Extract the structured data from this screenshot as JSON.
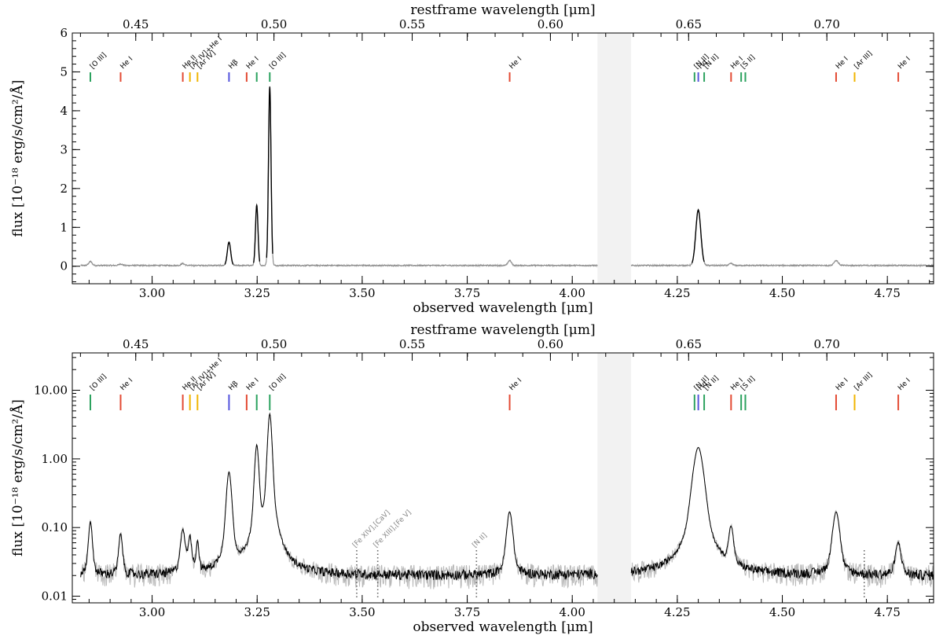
{
  "chart_data": [
    {
      "type": "line",
      "yscale": "linear",
      "xlabel": "observed wavelength [μm]",
      "x2label": "restframe wavelength [μm]",
      "ylabel": "flux [10⁻¹⁸ erg/s/cm²/Å]",
      "xlim": [
        2.81,
        4.86
      ],
      "ylim": [
        -0.45,
        6.0
      ],
      "x_ticks": [
        "3.00",
        "3.25",
        "3.50",
        "3.75",
        "4.00",
        "4.25",
        "4.50",
        "4.75"
      ],
      "x2_ticks": [
        "0.45",
        "0.50",
        "0.55",
        "0.60",
        "0.65",
        "0.70"
      ],
      "y_ticks": [
        "0",
        "1",
        "2",
        "3",
        "4",
        "5",
        "6"
      ],
      "masked_region": [
        4.06,
        4.14
      ],
      "emission_lines": [
        {
          "x": 2.853,
          "label": "[O III]",
          "color": "#2ca25f"
        },
        {
          "x": 2.925,
          "label": "He I",
          "color": "#e34a33"
        },
        {
          "x": 3.073,
          "label": "He II",
          "color": "#e34a33"
        },
        {
          "x": 3.09,
          "label": "[Ar IV]+He I",
          "color": "#f0b400"
        },
        {
          "x": 3.108,
          "label": "[Ar IV]",
          "color": "#f0b400"
        },
        {
          "x": 3.183,
          "label": "Hβ",
          "color": "#5555dd"
        },
        {
          "x": 3.225,
          "label": "He I",
          "color": "#e34a33"
        },
        {
          "x": 3.249,
          "label": "",
          "color": "#2ca25f"
        },
        {
          "x": 3.28,
          "label": "[O III]",
          "color": "#2ca25f"
        },
        {
          "x": 3.851,
          "label": "He I",
          "color": "#e34a33"
        },
        {
          "x": 4.291,
          "label": "[N II]",
          "color": "#2ca25f"
        },
        {
          "x": 4.3,
          "label": "Hα",
          "color": "#5555dd"
        },
        {
          "x": 4.314,
          "label": "[N II]",
          "color": "#2ca25f"
        },
        {
          "x": 4.378,
          "label": "He I",
          "color": "#e34a33"
        },
        {
          "x": 4.402,
          "label": "[S II]",
          "color": "#2ca25f"
        },
        {
          "x": 4.412,
          "label": "",
          "color": "#2ca25f"
        },
        {
          "x": 4.628,
          "label": "He I",
          "color": "#e34a33"
        },
        {
          "x": 4.672,
          "label": "[Ar III]",
          "color": "#f0b400"
        },
        {
          "x": 4.776,
          "label": "He I",
          "color": "#e34a33"
        }
      ],
      "peaks": [
        {
          "x": 2.853,
          "height": 0.1,
          "width": 0.004
        },
        {
          "x": 2.925,
          "height": 0.04,
          "width": 0.004
        },
        {
          "x": 3.073,
          "height": 0.05,
          "width": 0.004
        },
        {
          "x": 3.183,
          "height": 0.6,
          "width": 0.004
        },
        {
          "x": 3.249,
          "height": 1.55,
          "width": 0.003
        },
        {
          "x": 3.28,
          "height": 4.6,
          "width": 0.003
        },
        {
          "x": 3.851,
          "height": 0.13,
          "width": 0.004
        },
        {
          "x": 4.3,
          "height": 1.43,
          "width": 0.006
        },
        {
          "x": 4.378,
          "height": 0.05,
          "width": 0.004
        },
        {
          "x": 4.628,
          "height": 0.13,
          "width": 0.005
        }
      ]
    },
    {
      "type": "line",
      "yscale": "log",
      "xlabel": "observed wavelength [μm]",
      "x2label": "restframe wavelength [μm]",
      "ylabel": "flux [10⁻¹⁸ erg/s/cm²/Å]",
      "xlim": [
        2.81,
        4.86
      ],
      "ylim": [
        0.008,
        35
      ],
      "x_ticks": [
        "3.00",
        "3.25",
        "3.50",
        "3.75",
        "4.00",
        "4.25",
        "4.50",
        "4.75"
      ],
      "x2_ticks": [
        "0.45",
        "0.50",
        "0.55",
        "0.60",
        "0.65",
        "0.70"
      ],
      "y_ticks": [
        "0.01",
        "0.10",
        "1.00",
        "10.00"
      ],
      "masked_region": [
        4.06,
        4.14
      ],
      "continuum": 0.02,
      "peaks": [
        {
          "x": 2.853,
          "height": 0.1,
          "width": 0.004
        },
        {
          "x": 2.925,
          "height": 0.06,
          "width": 0.004
        },
        {
          "x": 3.073,
          "height": 0.07,
          "width": 0.005
        },
        {
          "x": 3.09,
          "height": 0.05,
          "width": 0.004
        },
        {
          "x": 3.108,
          "height": 0.04,
          "width": 0.003
        },
        {
          "x": 3.183,
          "height": 0.62,
          "width": 0.005
        },
        {
          "x": 3.249,
          "height": 1.55,
          "width": 0.004
        },
        {
          "x": 3.28,
          "height": 4.5,
          "width": 0.004
        },
        {
          "x": 3.851,
          "height": 0.15,
          "width": 0.006
        },
        {
          "x": 4.3,
          "height": 1.45,
          "width": 0.01
        },
        {
          "x": 4.378,
          "height": 0.075,
          "width": 0.005
        },
        {
          "x": 4.628,
          "height": 0.15,
          "width": 0.007
        },
        {
          "x": 4.776,
          "height": 0.04,
          "width": 0.006
        }
      ],
      "dotted_annotations": [
        {
          "x": 3.487,
          "label": "[Fe XIV],[CaV]"
        },
        {
          "x": 3.537,
          "label": "[Fe XIII],[Fe V]"
        },
        {
          "x": 3.772,
          "label": "[N II]"
        },
        {
          "x": 4.695,
          "label": ""
        }
      ]
    }
  ]
}
